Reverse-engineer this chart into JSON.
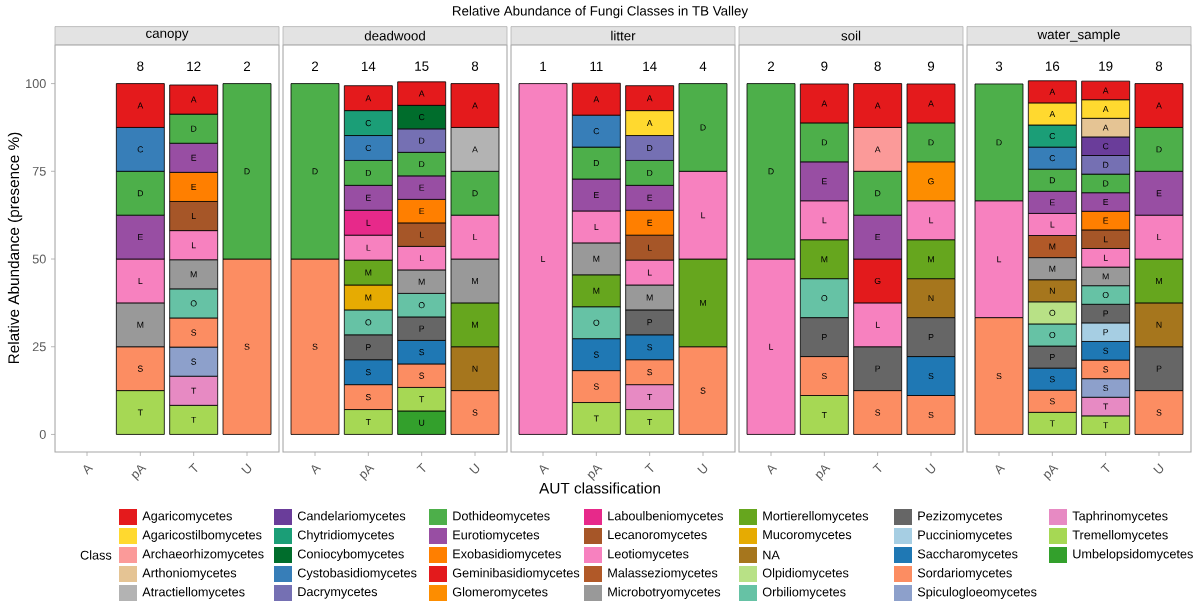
{
  "chart_data": [
    {
      "type": "bar",
      "stacked": true,
      "subtitle": "canopy",
      "ylabel": "Relative Abundance (presence %)",
      "categories": [
        "A",
        "pA",
        "T",
        "U"
      ],
      "ylim": [
        -5,
        111
      ],
      "yticks": [
        0,
        25,
        50,
        75,
        100
      ],
      "annotations": [
        {
          "text": "8",
          "x": "pA",
          "y": 100
        },
        {
          "text": "12",
          "x": "T",
          "y": 100
        },
        {
          "text": "2",
          "x": "U",
          "y": 100
        }
      ],
      "series": [
        {
          "color": "#a6d854",
          "values": [
            null,
            12.5,
            8.3,
            null
          ],
          "value_labels": [
            null,
            "T",
            "T",
            null
          ]
        },
        {
          "color": "#e78ac3",
          "values": [
            null,
            null,
            8.3,
            null
          ],
          "value_labels": [
            null,
            null,
            "T",
            null
          ]
        },
        {
          "color": "#8da0cb",
          "values": [
            null,
            null,
            8.3,
            null
          ],
          "value_labels": [
            null,
            null,
            "S",
            null
          ]
        },
        {
          "color": "#fc8d62",
          "values": [
            null,
            12.5,
            8.3,
            50
          ],
          "value_labels": [
            null,
            "S",
            "S",
            "S"
          ]
        },
        {
          "color": "#66c2a5",
          "values": [
            null,
            null,
            8.3,
            null
          ],
          "value_labels": [
            null,
            null,
            "O",
            null
          ]
        },
        {
          "color": "#999999",
          "values": [
            null,
            12.5,
            8.3,
            null
          ],
          "value_labels": [
            null,
            "M",
            "M",
            null
          ]
        },
        {
          "color": "#f781bf",
          "values": [
            null,
            12.5,
            8.3,
            null
          ],
          "value_labels": [
            null,
            "L",
            "L",
            null
          ]
        },
        {
          "color": "#a65628",
          "values": [
            null,
            null,
            8.3,
            null
          ],
          "value_labels": [
            null,
            null,
            "L",
            null
          ]
        },
        {
          "color": "#ff7f00",
          "values": [
            null,
            null,
            8.3,
            null
          ],
          "value_labels": [
            null,
            null,
            "E",
            null
          ]
        },
        {
          "color": "#984ea3",
          "values": [
            null,
            12.5,
            8.3,
            null
          ],
          "value_labels": [
            null,
            "E",
            "E",
            null
          ]
        },
        {
          "color": "#4daf4a",
          "values": [
            null,
            12.5,
            8.3,
            50
          ],
          "value_labels": [
            null,
            "D",
            "D",
            "D"
          ]
        },
        {
          "color": "#377eb8",
          "values": [
            null,
            12.5,
            null,
            null
          ],
          "value_labels": [
            null,
            "C",
            null,
            null
          ]
        },
        {
          "color": "#e41a1c",
          "values": [
            null,
            12.5,
            8.3,
            null
          ],
          "value_labels": [
            null,
            "A",
            "A",
            null
          ]
        }
      ]
    },
    {
      "type": "bar",
      "stacked": true,
      "subtitle": "deadwood",
      "tick_labels": "x",
      "categories": [
        "A",
        "pA",
        "T",
        "U"
      ],
      "ylim": [
        -5,
        111
      ],
      "yticks": [
        0,
        25,
        50,
        75,
        100
      ],
      "annotations": [
        {
          "text": "2",
          "x": "A",
          "y": 100
        },
        {
          "text": "14",
          "x": "pA",
          "y": 100
        },
        {
          "text": "15",
          "x": "T",
          "y": 100
        },
        {
          "text": "8",
          "x": "U",
          "y": 100
        }
      ],
      "series": [
        {
          "color": "#33a02c",
          "values": [
            null,
            null,
            6.7,
            null
          ],
          "value_labels": [
            null,
            null,
            "U",
            null
          ]
        },
        {
          "color": "#a6d854",
          "values": [
            null,
            7.1,
            6.7,
            null
          ],
          "value_labels": [
            null,
            "T",
            "T",
            null
          ]
        },
        {
          "color": "#fc8d62",
          "values": [
            50,
            7.1,
            6.7,
            12.5
          ],
          "value_labels": [
            "S",
            "S",
            "S",
            "S"
          ]
        },
        {
          "color": "#1f78b4",
          "values": [
            null,
            7.1,
            6.7,
            null
          ],
          "value_labels": [
            null,
            "S",
            "S",
            null
          ]
        },
        {
          "color": "#666666",
          "values": [
            null,
            7.1,
            6.7,
            null
          ],
          "value_labels": [
            null,
            "P",
            "P",
            null
          ]
        },
        {
          "color": "#66c2a5",
          "values": [
            null,
            7.1,
            6.7,
            null
          ],
          "value_labels": [
            null,
            "O",
            "O",
            null
          ]
        },
        {
          "color": "#a6761d",
          "values": [
            null,
            null,
            null,
            12.5
          ],
          "value_labels": [
            null,
            null,
            null,
            "N"
          ]
        },
        {
          "color": "#e6ab02",
          "values": [
            null,
            7.1,
            null,
            null
          ],
          "value_labels": [
            null,
            "M",
            null,
            null
          ]
        },
        {
          "color": "#66a61e",
          "values": [
            null,
            7.1,
            null,
            12.5
          ],
          "value_labels": [
            null,
            "M",
            null,
            "M"
          ]
        },
        {
          "color": "#999999",
          "values": [
            null,
            null,
            6.7,
            12.5
          ],
          "value_labels": [
            null,
            null,
            "M",
            "M"
          ]
        },
        {
          "color": "#f781bf",
          "values": [
            null,
            7.1,
            6.7,
            12.5
          ],
          "value_labels": [
            null,
            "L",
            "L",
            "L"
          ]
        },
        {
          "color": "#a65628",
          "values": [
            null,
            null,
            6.7,
            null
          ],
          "value_labels": [
            null,
            null,
            "L",
            null
          ]
        },
        {
          "color": "#e7298a",
          "values": [
            null,
            7.1,
            null,
            null
          ],
          "value_labels": [
            null,
            "L",
            null,
            null
          ]
        },
        {
          "color": "#ff7f00",
          "values": [
            null,
            null,
            6.7,
            null
          ],
          "value_labels": [
            null,
            null,
            "E",
            null
          ]
        },
        {
          "color": "#984ea3",
          "values": [
            null,
            7.1,
            6.7,
            null
          ],
          "value_labels": [
            null,
            "E",
            "E",
            null
          ]
        },
        {
          "color": "#4daf4a",
          "values": [
            50,
            7.1,
            6.7,
            12.5
          ],
          "value_labels": [
            "D",
            "D",
            "D",
            "D"
          ]
        },
        {
          "color": "#7570b3",
          "values": [
            null,
            null,
            6.7,
            null
          ],
          "value_labels": [
            null,
            null,
            "D",
            null
          ]
        },
        {
          "color": "#377eb8",
          "values": [
            null,
            7.1,
            null,
            null
          ],
          "value_labels": [
            null,
            "C",
            null,
            null
          ]
        },
        {
          "color": "#006d2c",
          "values": [
            null,
            null,
            6.7,
            null
          ],
          "value_labels": [
            null,
            null,
            "C",
            null
          ]
        },
        {
          "color": "#1b9e77",
          "values": [
            null,
            7.1,
            null,
            null
          ],
          "value_labels": [
            null,
            "C",
            null,
            null
          ]
        },
        {
          "color": "#b3b3b3",
          "values": [
            null,
            null,
            null,
            12.5
          ],
          "value_labels": [
            null,
            null,
            null,
            "A"
          ]
        },
        {
          "color": "#e41a1c",
          "values": [
            null,
            7.1,
            6.7,
            12.5
          ],
          "value_labels": [
            null,
            "A",
            "A",
            "A"
          ]
        }
      ]
    },
    {
      "type": "bar",
      "stacked": true,
      "title": "Relative Abundance of Fungi Classes in TB Valley",
      "subtitle": "litter",
      "xlabel": "AUT classification",
      "tick_labels": "x",
      "categories": [
        "A",
        "pA",
        "T",
        "U"
      ],
      "ylim": [
        -5,
        111
      ],
      "yticks": [
        0,
        25,
        50,
        75,
        100
      ],
      "annotations": [
        {
          "text": "1",
          "x": "A",
          "y": 100
        },
        {
          "text": "11",
          "x": "pA",
          "y": 100
        },
        {
          "text": "14",
          "x": "T",
          "y": 100
        },
        {
          "text": "4",
          "x": "U",
          "y": 100
        }
      ],
      "series": [
        {
          "color": "#a6d854",
          "values": [
            null,
            9.1,
            7.1,
            null
          ],
          "value_labels": [
            null,
            "T",
            "T",
            null
          ]
        },
        {
          "color": "#e78ac3",
          "values": [
            null,
            null,
            7.1,
            null
          ],
          "value_labels": [
            null,
            null,
            "T",
            null
          ]
        },
        {
          "color": "#fc8d62",
          "values": [
            null,
            9.1,
            7.1,
            25
          ],
          "value_labels": [
            null,
            "S",
            "S",
            "S"
          ]
        },
        {
          "color": "#1f78b4",
          "values": [
            null,
            9.1,
            7.1,
            null
          ],
          "value_labels": [
            null,
            "S",
            "S",
            null
          ]
        },
        {
          "color": "#666666",
          "values": [
            null,
            null,
            7.1,
            null
          ],
          "value_labels": [
            null,
            null,
            "P",
            null
          ]
        },
        {
          "color": "#66c2a5",
          "values": [
            null,
            9.1,
            null,
            null
          ],
          "value_labels": [
            null,
            "O",
            null,
            null
          ]
        },
        {
          "color": "#66a61e",
          "values": [
            null,
            9.1,
            null,
            25
          ],
          "value_labels": [
            null,
            "M",
            null,
            "M"
          ]
        },
        {
          "color": "#999999",
          "values": [
            null,
            9.1,
            7.1,
            null
          ],
          "value_labels": [
            null,
            "M",
            "M",
            null
          ]
        },
        {
          "color": "#f781bf",
          "values": [
            100,
            9.1,
            7.1,
            25
          ],
          "value_labels": [
            "L",
            "L",
            "L",
            "L"
          ]
        },
        {
          "color": "#a65628",
          "values": [
            null,
            null,
            7.1,
            null
          ],
          "value_labels": [
            null,
            null,
            "L",
            null
          ]
        },
        {
          "color": "#ff7f00",
          "values": [
            null,
            null,
            7.1,
            null
          ],
          "value_labels": [
            null,
            null,
            "E",
            null
          ]
        },
        {
          "color": "#984ea3",
          "values": [
            null,
            9.1,
            7.1,
            null
          ],
          "value_labels": [
            null,
            "E",
            "E",
            null
          ]
        },
        {
          "color": "#4daf4a",
          "values": [
            null,
            9.1,
            7.1,
            25
          ],
          "value_labels": [
            null,
            "D",
            "D",
            "D"
          ]
        },
        {
          "color": "#7570b3",
          "values": [
            null,
            null,
            7.1,
            null
          ],
          "value_labels": [
            null,
            null,
            "D",
            null
          ]
        },
        {
          "color": "#377eb8",
          "values": [
            null,
            9.1,
            null,
            null
          ],
          "value_labels": [
            null,
            "C",
            null,
            null
          ]
        },
        {
          "color": "#ffd92f",
          "values": [
            null,
            null,
            7.1,
            null
          ],
          "value_labels": [
            null,
            null,
            "A",
            null
          ]
        },
        {
          "color": "#e41a1c",
          "values": [
            null,
            9.1,
            7.1,
            null
          ],
          "value_labels": [
            null,
            "A",
            "A",
            null
          ]
        }
      ]
    },
    {
      "type": "bar",
      "stacked": true,
      "subtitle": "soil",
      "tick_labels": "x",
      "categories": [
        "A",
        "pA",
        "T",
        "U"
      ],
      "ylim": [
        -5,
        111
      ],
      "yticks": [
        0,
        25,
        50,
        75,
        100
      ],
      "annotations": [
        {
          "text": "2",
          "x": "A",
          "y": 100
        },
        {
          "text": "9",
          "x": "pA",
          "y": 100
        },
        {
          "text": "8",
          "x": "T",
          "y": 100
        },
        {
          "text": "9",
          "x": "U",
          "y": 100
        }
      ],
      "series": [
        {
          "color": "#a6d854",
          "values": [
            null,
            11.1,
            null,
            null
          ],
          "value_labels": [
            null,
            "T",
            null,
            null
          ]
        },
        {
          "color": "#fc8d62",
          "values": [
            null,
            11.1,
            12.5,
            11.1
          ],
          "value_labels": [
            null,
            "S",
            "S",
            "S"
          ]
        },
        {
          "color": "#1f78b4",
          "values": [
            null,
            null,
            null,
            11.1
          ],
          "value_labels": [
            null,
            null,
            null,
            "S"
          ]
        },
        {
          "color": "#666666",
          "values": [
            null,
            11.1,
            12.5,
            11.1
          ],
          "value_labels": [
            null,
            "P",
            "P",
            "P"
          ]
        },
        {
          "color": "#66c2a5",
          "values": [
            null,
            11.1,
            null,
            null
          ],
          "value_labels": [
            null,
            "O",
            null,
            null
          ]
        },
        {
          "color": "#a6761d",
          "values": [
            null,
            null,
            null,
            11.1
          ],
          "value_labels": [
            null,
            null,
            null,
            "N"
          ]
        },
        {
          "color": "#66a61e",
          "values": [
            null,
            11.1,
            null,
            11.1
          ],
          "value_labels": [
            null,
            "M",
            null,
            "M"
          ]
        },
        {
          "color": "#f781bf",
          "values": [
            50,
            11.1,
            12.5,
            11.1
          ],
          "value_labels": [
            "L",
            "L",
            "L",
            "L"
          ]
        },
        {
          "color": "#fd8d00",
          "values": [
            null,
            null,
            null,
            11.1
          ],
          "value_labels": [
            null,
            null,
            null,
            "G"
          ]
        },
        {
          "color": "#e31a1c",
          "values": [
            null,
            null,
            12.5,
            null
          ],
          "value_labels": [
            null,
            null,
            "G",
            null
          ]
        },
        {
          "color": "#984ea3",
          "values": [
            null,
            11.1,
            12.5,
            null
          ],
          "value_labels": [
            null,
            "E",
            "E",
            null
          ]
        },
        {
          "color": "#4daf4a",
          "values": [
            50,
            11.1,
            12.5,
            11.1
          ],
          "value_labels": [
            "D",
            "D",
            "D",
            "D"
          ]
        },
        {
          "color": "#fb9a99",
          "values": [
            null,
            null,
            12.5,
            null
          ],
          "value_labels": [
            null,
            null,
            "A",
            null
          ]
        },
        {
          "color": "#e41a1c",
          "values": [
            null,
            11.1,
            12.5,
            11.1
          ],
          "value_labels": [
            null,
            "A",
            "A",
            "A"
          ]
        }
      ]
    },
    {
      "type": "bar",
      "stacked": true,
      "subtitle": "water_sample",
      "tick_labels": "x",
      "legend": "bottom",
      "legend_title": "Class",
      "categories": [
        "A",
        "pA",
        "T",
        "U"
      ],
      "ylim": [
        -5,
        111
      ],
      "yticks": [
        0,
        25,
        50,
        75,
        100
      ],
      "annotations": [
        {
          "text": "3",
          "x": "A",
          "y": 100
        },
        {
          "text": "16",
          "x": "pA",
          "y": 100
        },
        {
          "text": "19",
          "x": "T",
          "y": 100
        },
        {
          "text": "8",
          "x": "U",
          "y": 100
        }
      ],
      "series": [
        {
          "name": "Umbelopsidomycetes",
          "color": "#33a02c",
          "values": [
            null,
            null,
            null,
            null
          ]
        },
        {
          "name": "Tremellomycetes",
          "color": "#a6d854",
          "values": [
            null,
            6.3,
            5.3,
            null
          ],
          "value_labels": [
            null,
            "T",
            "T",
            null
          ]
        },
        {
          "name": "Taphrinomycetes",
          "color": "#e78ac3",
          "values": [
            null,
            null,
            5.3,
            null
          ],
          "value_labels": [
            null,
            null,
            "T",
            null
          ]
        },
        {
          "name": "Spiculogloeomycetes",
          "color": "#8da0cb",
          "values": [
            null,
            null,
            5.3,
            null
          ],
          "value_labels": [
            null,
            null,
            "S",
            null
          ]
        },
        {
          "name": "Sordariomycetes",
          "color": "#fc8d62",
          "values": [
            33.3,
            6.3,
            5.3,
            12.5
          ],
          "value_labels": [
            "S",
            "S",
            "S",
            "S"
          ]
        },
        {
          "name": "Saccharomycetes",
          "color": "#1f78b4",
          "values": [
            null,
            6.3,
            5.3,
            null
          ],
          "value_labels": [
            null,
            "S",
            "S",
            null
          ]
        },
        {
          "name": "Pucciniomycetes",
          "color": "#a6cee3",
          "values": [
            null,
            null,
            5.3,
            null
          ],
          "value_labels": [
            null,
            null,
            "P",
            null
          ]
        },
        {
          "name": "Pezizomycetes",
          "color": "#666666",
          "values": [
            null,
            6.3,
            5.3,
            12.5
          ],
          "value_labels": [
            null,
            "P",
            "P",
            "P"
          ]
        },
        {
          "name": "Orbiliomycetes",
          "color": "#66c2a5",
          "values": [
            null,
            6.3,
            5.3,
            null
          ],
          "value_labels": [
            null,
            "O",
            "O",
            null
          ]
        },
        {
          "name": "Olpidiomycetes",
          "color": "#b8e186",
          "values": [
            null,
            6.3,
            null,
            null
          ],
          "value_labels": [
            null,
            "O",
            null,
            null
          ]
        },
        {
          "name": "NA",
          "color": "#a6761d",
          "values": [
            null,
            6.3,
            null,
            12.5
          ],
          "value_labels": [
            null,
            "N",
            null,
            "N"
          ]
        },
        {
          "name": "Mucoromycetes",
          "color": "#e6ab02",
          "values": [
            null,
            null,
            null,
            null
          ]
        },
        {
          "name": "Mortierellomycetes",
          "color": "#66a61e",
          "values": [
            null,
            null,
            null,
            12.5
          ],
          "value_labels": [
            null,
            null,
            null,
            "M"
          ]
        },
        {
          "name": "Microbotryomycetes",
          "color": "#999999",
          "values": [
            null,
            6.3,
            5.3,
            null
          ],
          "value_labels": [
            null,
            "M",
            "M",
            null
          ]
        },
        {
          "name": "Malasseziomycetes",
          "color": "#b15928",
          "values": [
            null,
            6.3,
            null,
            null
          ],
          "value_labels": [
            null,
            "M",
            null,
            null
          ]
        },
        {
          "name": "Leotiomycetes",
          "color": "#f781bf",
          "values": [
            33.3,
            6.3,
            5.3,
            12.5
          ],
          "value_labels": [
            "L",
            "L",
            "L",
            "L"
          ]
        },
        {
          "name": "Lecanoromycetes",
          "color": "#a65628",
          "values": [
            null,
            null,
            5.3,
            null
          ],
          "value_labels": [
            null,
            null,
            "L",
            null
          ]
        },
        {
          "name": "Laboulbeniomycetes",
          "color": "#e7298a",
          "values": [
            null,
            null,
            null,
            null
          ]
        },
        {
          "name": "Glomeromycetes",
          "color": "#fd8d00",
          "values": [
            null,
            null,
            null,
            null
          ]
        },
        {
          "name": "Geminibasidiomycetes",
          "color": "#e31a1c",
          "values": [
            null,
            null,
            null,
            null
          ]
        },
        {
          "name": "Exobasidiomycetes",
          "color": "#ff7f00",
          "values": [
            null,
            null,
            5.3,
            null
          ],
          "value_labels": [
            null,
            null,
            "E",
            null
          ]
        },
        {
          "name": "Eurotiomycetes",
          "color": "#984ea3",
          "values": [
            null,
            6.3,
            5.3,
            12.5
          ],
          "value_labels": [
            null,
            "E",
            "E",
            "E"
          ]
        },
        {
          "name": "Dothideomycetes",
          "color": "#4daf4a",
          "values": [
            33.3,
            6.3,
            5.3,
            12.5
          ],
          "value_labels": [
            "D",
            "D",
            "D",
            "D"
          ]
        },
        {
          "name": "Dacrymycetes",
          "color": "#7570b3",
          "values": [
            null,
            null,
            5.3,
            null
          ],
          "value_labels": [
            null,
            null,
            "D",
            null
          ]
        },
        {
          "name": "Cystobasidiomycetes",
          "color": "#377eb8",
          "values": [
            null,
            6.3,
            null,
            null
          ],
          "value_labels": [
            null,
            "C",
            null,
            null
          ]
        },
        {
          "name": "Coniocybomycetes",
          "color": "#006d2c",
          "values": [
            null,
            null,
            null,
            null
          ]
        },
        {
          "name": "Chytridiomycetes",
          "color": "#1b9e77",
          "values": [
            null,
            6.3,
            null,
            null
          ],
          "value_labels": [
            null,
            "C",
            null,
            null
          ]
        },
        {
          "name": "Candelariomycetes",
          "color": "#6a3d9a",
          "values": [
            null,
            null,
            5.3,
            null
          ],
          "value_labels": [
            null,
            null,
            "C",
            null
          ]
        },
        {
          "name": "Atractiellomycetes",
          "color": "#b3b3b3",
          "values": [
            null,
            null,
            null,
            null
          ]
        },
        {
          "name": "Arthoniomycetes",
          "color": "#e5c494",
          "values": [
            null,
            null,
            5.3,
            null
          ],
          "value_labels": [
            null,
            null,
            "A",
            null
          ]
        },
        {
          "name": "Archaeorhizomycetes",
          "color": "#fb9a99",
          "values": [
            null,
            null,
            null,
            null
          ]
        },
        {
          "name": "Agaricostilbomycetes",
          "color": "#ffd92f",
          "values": [
            null,
            6.3,
            5.3,
            null
          ],
          "value_labels": [
            null,
            "A",
            "A",
            null
          ]
        },
        {
          "name": "Agaricomycetes",
          "color": "#e41a1c",
          "values": [
            null,
            6.3,
            5.3,
            12.5
          ],
          "value_labels": [
            null,
            "A",
            "A",
            "A"
          ]
        }
      ]
    }
  ]
}
